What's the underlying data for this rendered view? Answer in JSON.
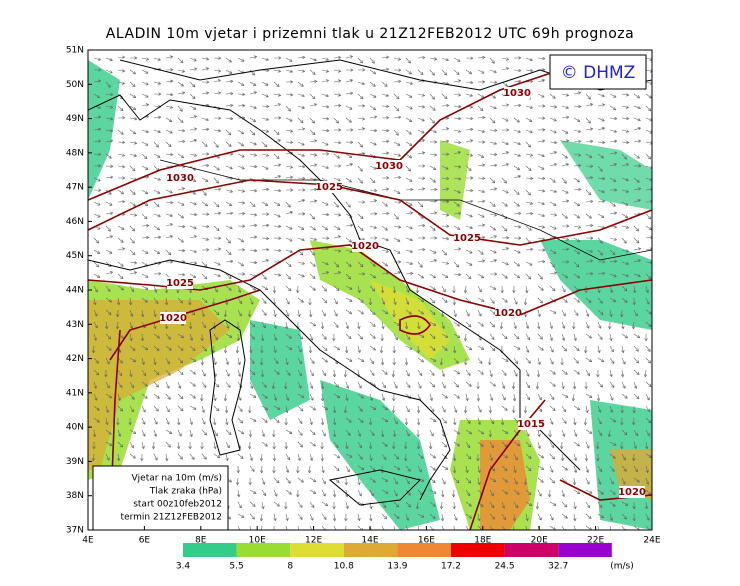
{
  "header": {
    "title": "ALADIN 10m vjetar i prizemni tlak u 21Z12FEB2012 UTC 69h prognoza",
    "logo": "© DHMZ"
  },
  "map": {
    "lat_labels": [
      "51N",
      "50N",
      "49N",
      "48N",
      "47N",
      "46N",
      "45N",
      "44N",
      "43N",
      "42N",
      "41N",
      "40N",
      "39N",
      "38N",
      "37N"
    ],
    "lon_labels": [
      "4E",
      "6E",
      "8E",
      "10E",
      "12E",
      "14E",
      "16E",
      "18E",
      "20E",
      "22E",
      "24E"
    ],
    "isobar_labels": [
      "1030",
      "1030",
      "1030",
      "1025",
      "1025",
      "1025",
      "1020",
      "1020",
      "1020",
      "1015",
      "1020"
    ]
  },
  "legend": {
    "lines": [
      "Vjetar na 10m (m/s)",
      "Tlak zraka (hPa)",
      "start 00z10feb2012",
      "termin 21Z12FEB2012"
    ]
  },
  "colorbar": {
    "levels": [
      3.4,
      5.5,
      8,
      10.8,
      13.9,
      17.2,
      24.5,
      32.7
    ],
    "unit": "(m/s)",
    "colors": [
      "#33cc88",
      "#99dd33",
      "#dddd33",
      "#ddaa33",
      "#ee8833",
      "#ee0000",
      "#cc0066",
      "#9900cc"
    ]
  }
}
